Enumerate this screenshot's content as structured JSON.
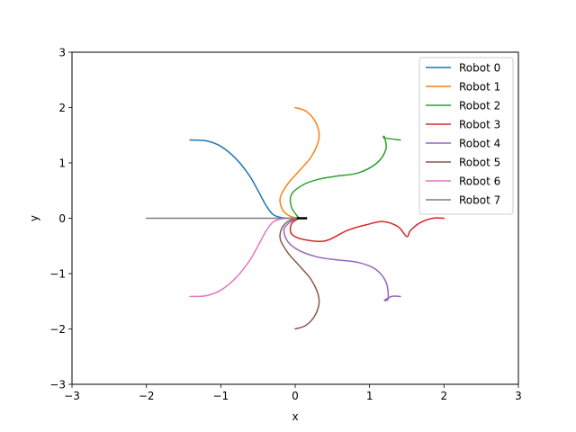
{
  "chart_data": {
    "type": "line",
    "title": "",
    "xlabel": "x",
    "ylabel": "y",
    "xlim": [
      -3,
      3
    ],
    "ylim": [
      -3,
      3
    ],
    "xticks": [
      -3,
      -2,
      -1,
      0,
      1,
      2,
      3
    ],
    "yticks": [
      -3,
      -2,
      -1,
      0,
      1,
      2,
      3
    ],
    "xtick_labels": [
      "−3",
      "−2",
      "−1",
      "0",
      "1",
      "2",
      "3"
    ],
    "ytick_labels": [
      "−3",
      "−2",
      "−1",
      "0",
      "1",
      "2",
      "3"
    ],
    "grid": false,
    "legend_position": "top-right",
    "series": [
      {
        "name": "Robot 0",
        "color": "#1f77b4",
        "x": [
          -1.414,
          -1.2,
          -1.0,
          -0.8,
          -0.62,
          -0.5,
          -0.4,
          -0.3,
          -0.18,
          -0.06,
          0.05,
          0.1
        ],
        "y": [
          1.414,
          1.4,
          1.3,
          1.08,
          0.78,
          0.5,
          0.25,
          0.07,
          0.01,
          0.0,
          0.0,
          0.0
        ]
      },
      {
        "name": "Robot 1",
        "color": "#ff7f0e",
        "x": [
          0.0,
          0.15,
          0.28,
          0.32,
          0.22,
          0.05,
          -0.1,
          -0.2,
          -0.18,
          -0.1,
          0.0,
          0.06
        ],
        "y": [
          2.0,
          1.93,
          1.72,
          1.45,
          1.12,
          0.85,
          0.62,
          0.38,
          0.18,
          0.06,
          0.01,
          0.0
        ]
      },
      {
        "name": "Robot 2",
        "color": "#2ca02c",
        "x": [
          1.414,
          1.2,
          1.2,
          1.22,
          1.1,
          0.85,
          0.55,
          0.3,
          0.1,
          -0.05,
          -0.05,
          0.05
        ],
        "y": [
          1.414,
          1.45,
          1.47,
          1.25,
          1.0,
          0.82,
          0.76,
          0.7,
          0.6,
          0.43,
          0.2,
          0.0
        ]
      },
      {
        "name": "Robot 3",
        "color": "#d62728",
        "x": [
          2.0,
          1.85,
          1.68,
          1.55,
          1.5,
          1.38,
          1.18,
          0.95,
          0.7,
          0.4,
          0.1,
          -0.05,
          -0.05,
          0.05
        ],
        "y": [
          0.0,
          0.0,
          -0.08,
          -0.22,
          -0.33,
          -0.15,
          -0.06,
          -0.12,
          -0.22,
          -0.41,
          -0.38,
          -0.28,
          -0.1,
          0.0
        ]
      },
      {
        "name": "Robot 4",
        "color": "#9467bd",
        "x": [
          1.414,
          1.3,
          1.2,
          1.25,
          1.22,
          1.08,
          0.85,
          0.55,
          0.3,
          0.05,
          -0.1,
          -0.15,
          -0.05,
          0.05
        ],
        "y": [
          -1.414,
          -1.41,
          -1.48,
          -1.45,
          -1.15,
          -0.92,
          -0.8,
          -0.75,
          -0.7,
          -0.58,
          -0.42,
          -0.2,
          -0.05,
          0.0
        ]
      },
      {
        "name": "Robot 5",
        "color": "#8c564b",
        "x": [
          0.0,
          0.15,
          0.28,
          0.32,
          0.22,
          0.05,
          -0.1,
          -0.2,
          -0.18,
          -0.1,
          0.0,
          0.06
        ],
        "y": [
          -2.0,
          -1.93,
          -1.72,
          -1.45,
          -1.12,
          -0.85,
          -0.62,
          -0.38,
          -0.18,
          -0.06,
          -0.01,
          0.0
        ]
      },
      {
        "name": "Robot 6",
        "color": "#e377c2",
        "x": [
          -1.414,
          -1.2,
          -1.0,
          -0.8,
          -0.62,
          -0.5,
          -0.4,
          -0.3,
          -0.18,
          -0.06,
          0.05,
          0.1
        ],
        "y": [
          -1.414,
          -1.4,
          -1.3,
          -1.08,
          -0.78,
          -0.5,
          -0.25,
          -0.07,
          -0.01,
          0.0,
          0.0,
          0.0
        ]
      },
      {
        "name": "Robot 7",
        "color": "#7f7f7f",
        "x": [
          -2.0,
          -1.0,
          0.0,
          0.1
        ],
        "y": [
          0.0,
          0.0,
          0.0,
          0.0
        ]
      }
    ],
    "endpoint_marks": {
      "color": "#000000",
      "x": [
        0.02,
        0.16
      ],
      "y": [
        0.0,
        0.0
      ]
    }
  }
}
